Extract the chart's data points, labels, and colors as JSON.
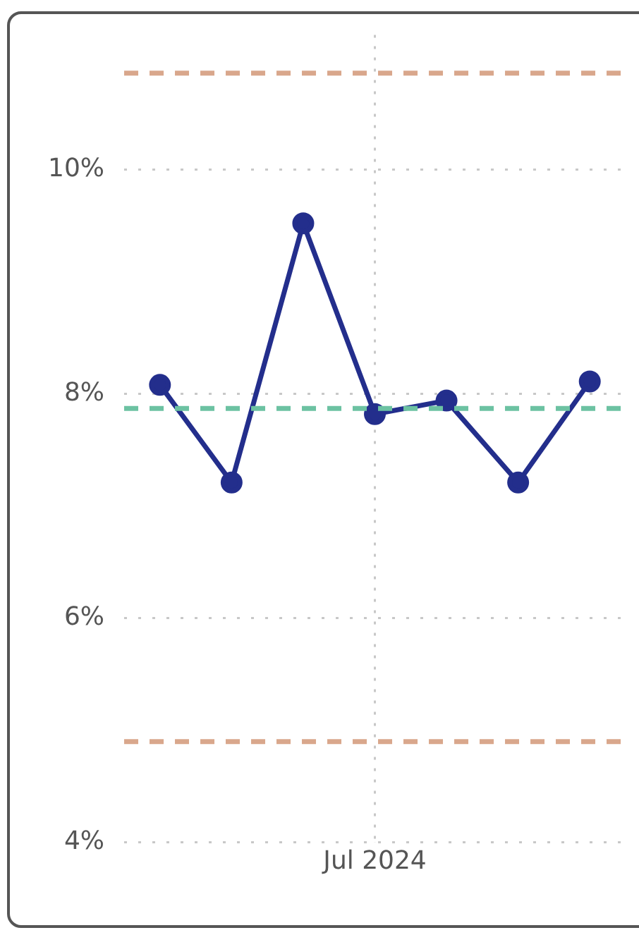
{
  "chart_data": {
    "type": "line",
    "categories": [
      null,
      null,
      null,
      "Jul 2024",
      null,
      null,
      null
    ],
    "series": [
      {
        "color": "#232e8c",
        "values": [
          8.08,
          7.21,
          9.52,
          7.82,
          7.94,
          7.21,
          8.11
        ]
      }
    ],
    "ylim": [
      4,
      11.2
    ],
    "yticks": [
      {
        "value": 4,
        "label": "4%"
      },
      {
        "value": 6,
        "label": "6%"
      },
      {
        "value": 8,
        "label": "8%"
      },
      {
        "value": 10,
        "label": "10%"
      }
    ],
    "ref_lines": [
      {
        "axis": "y",
        "value": 10.86,
        "color": "#d9a78c",
        "line_style": "dashed"
      },
      {
        "axis": "y",
        "value": 4.9,
        "color": "#d9a78c",
        "line_style": "dashed"
      },
      {
        "axis": "y",
        "value": 7.87,
        "color": "#6cc2a2",
        "line_style": "dashed"
      }
    ],
    "grid": true,
    "marker": "circle",
    "line_style": "solid",
    "legend": false
  }
}
